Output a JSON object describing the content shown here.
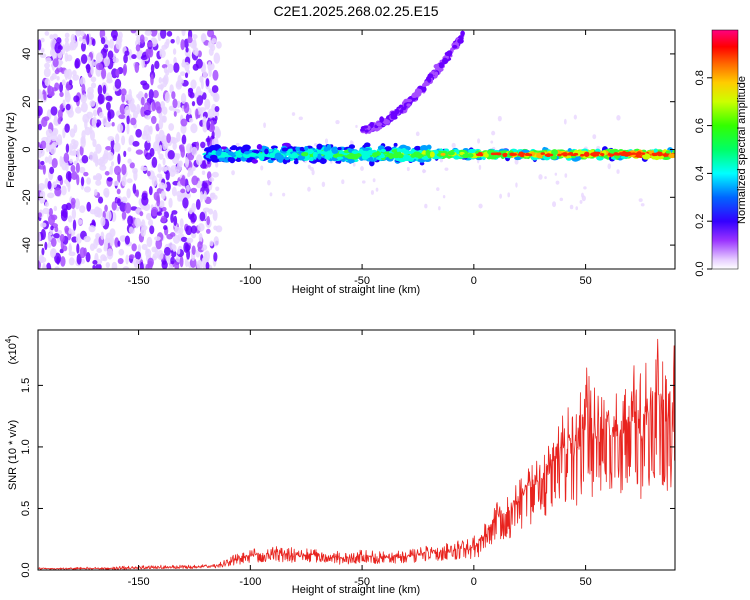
{
  "title": "C2E1.2025.268.02.25.E15",
  "chart_data": [
    {
      "type": "heatmap",
      "xlabel": "Height of straight line (km)",
      "ylabel": "Frequency (Hz)",
      "xlim": [
        -195,
        90
      ],
      "ylim": [
        -50,
        50
      ],
      "x_ticks": [
        -150,
        -100,
        -50,
        0,
        50
      ],
      "x_tick_labels": [
        "-150",
        "-100",
        "-50",
        "0",
        "50"
      ],
      "y_ticks": [
        -40,
        -20,
        0,
        20,
        40
      ],
      "y_tick_labels": [
        "-40",
        "-20",
        "0",
        "20",
        "40"
      ],
      "colorbar": {
        "label": "Normalized spectral amplitude",
        "range": [
          0,
          1
        ],
        "ticks": [
          0,
          0.2,
          0.4,
          0.6,
          0.8
        ],
        "tick_labels": [
          "0.0",
          "0.2",
          "0.4",
          "0.6",
          "0.8"
        ],
        "colormap": [
          "#ffffff",
          "#cc88ff",
          "#7f00ff",
          "#0000ff",
          "#00ffff",
          "#00ff00",
          "#ffff00",
          "#ff8000",
          "#ff0000",
          "#ff0080"
        ]
      },
      "features": [
        {
          "kind": "main-band",
          "x_range": [
            -120,
            90
          ],
          "frequency": -2,
          "peak_amplitude": 0.9
        },
        {
          "kind": "rising-trace",
          "x_range": [
            -50,
            -5
          ],
          "frequency_range": [
            8,
            48
          ]
        },
        {
          "kind": "noise-region",
          "x_range": [
            -195,
            -120
          ],
          "frequency_range": [
            -50,
            50
          ]
        }
      ]
    },
    {
      "type": "line",
      "xlabel": "Height of straight line (km)",
      "ylabel": "SNR (10 * v/v)",
      "y_multiplier": "(x10",
      "y_multiplier_exp": "4",
      "y_multiplier_close": ")",
      "xlim": [
        -195,
        90
      ],
      "ylim": [
        0,
        1.95
      ],
      "x_ticks": [
        -150,
        -100,
        -50,
        0,
        50
      ],
      "x_tick_labels": [
        "-150",
        "-100",
        "-50",
        "0",
        "50"
      ],
      "y_ticks": [
        0,
        0.5,
        1.0,
        1.5
      ],
      "y_tick_labels": [
        "0.0",
        "0.5",
        "1.0",
        "1.5"
      ],
      "color": "#e8231e",
      "series": [
        {
          "x": [
            -195,
            -180,
            -160,
            -140,
            -125,
            -115,
            -110,
            -105,
            -100,
            -90,
            -80,
            -70,
            -60,
            -50,
            -40,
            -30,
            -20,
            -10,
            -5,
            0,
            5,
            10,
            15,
            20,
            25,
            30,
            35,
            40,
            45,
            50,
            55,
            60,
            65,
            70,
            75,
            80,
            85,
            90
          ],
          "values": [
            0.01,
            0.01,
            0.01,
            0.02,
            0.02,
            0.03,
            0.05,
            0.08,
            0.1,
            0.12,
            0.1,
            0.11,
            0.08,
            0.1,
            0.09,
            0.1,
            0.13,
            0.14,
            0.17,
            0.15,
            0.25,
            0.4,
            0.45,
            0.55,
            0.65,
            0.7,
            0.8,
            0.95,
            0.9,
            1.05,
            1.0,
            1.1,
            1.05,
            1.2,
            1.0,
            1.35,
            1.2,
            1.1
          ],
          "envelope": [
            0.02,
            0.02,
            0.03,
            0.04,
            0.04,
            0.05,
            0.1,
            0.15,
            0.17,
            0.2,
            0.18,
            0.17,
            0.15,
            0.17,
            0.15,
            0.17,
            0.2,
            0.22,
            0.26,
            0.28,
            0.4,
            0.55,
            0.6,
            0.72,
            0.85,
            0.95,
            1.05,
            1.3,
            1.35,
            1.7,
            1.45,
            1.6,
            1.4,
            1.7,
            1.6,
            1.95,
            1.8,
            1.85
          ]
        }
      ]
    }
  ]
}
